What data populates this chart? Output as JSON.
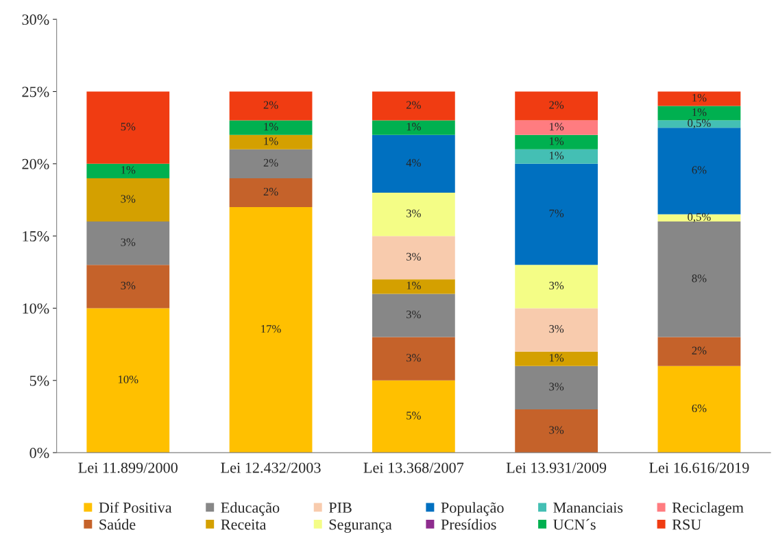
{
  "chart_data": {
    "type": "bar",
    "stacked": true,
    "categories": [
      "Lei 11.899/2000",
      "Lei 12.432/2003",
      "Lei 13.368/2007",
      "Lei 13.931/2009",
      "Lei 16.616/2019"
    ],
    "ylim": [
      0,
      30
    ],
    "yticks": [
      {
        "value": 0,
        "label": "0%"
      },
      {
        "value": 5,
        "label": "5%"
      },
      {
        "value": 10,
        "label": "10%"
      },
      {
        "value": 15,
        "label": "15%"
      },
      {
        "value": 20,
        "label": "20%"
      },
      {
        "value": 25,
        "label": "25%"
      },
      {
        "value": 30,
        "label": "30%"
      }
    ],
    "grid": false,
    "legend": "bottom",
    "series": [
      {
        "name": "Dif Positiva",
        "color": "#ffc000",
        "values": [
          10,
          17,
          5,
          null,
          6
        ],
        "value_labels": [
          "10%",
          "17%",
          "5%",
          null,
          "6%"
        ]
      },
      {
        "name": "Saúde",
        "color": "#c5622a",
        "values": [
          3,
          2,
          3,
          3,
          2
        ],
        "value_labels": [
          "3%",
          "2%",
          "3%",
          "3%",
          "2%"
        ]
      },
      {
        "name": "Educação",
        "color": "#878787",
        "values": [
          3,
          2,
          3,
          3,
          8
        ],
        "value_labels": [
          "3%",
          "2%",
          "3%",
          "3%",
          "8%"
        ]
      },
      {
        "name": "Receita",
        "color": "#d4a000",
        "values": [
          3,
          1,
          1,
          1,
          null
        ],
        "value_labels": [
          "3%",
          "1%",
          "1%",
          "1%",
          null
        ]
      },
      {
        "name": "PIB",
        "color": "#f8cbad",
        "values": [
          null,
          null,
          3,
          3,
          null
        ],
        "value_labels": [
          null,
          null,
          "3%",
          "3%",
          null
        ]
      },
      {
        "name": "Segurança",
        "color": "#f4fd86",
        "values": [
          null,
          null,
          3,
          3,
          0.5
        ],
        "value_labels": [
          null,
          null,
          "3%",
          "3%",
          "0,5%"
        ]
      },
      {
        "name": "População",
        "color": "#0070c0",
        "values": [
          null,
          null,
          4,
          7,
          6
        ],
        "value_labels": [
          null,
          null,
          "4%",
          "7%",
          "6%"
        ]
      },
      {
        "name": "Presídios",
        "color": "#8e2c8e",
        "values": [
          null,
          null,
          null,
          null,
          null
        ],
        "value_labels": [
          null,
          null,
          null,
          null,
          null
        ]
      },
      {
        "name": "Mananciais",
        "color": "#44bfb4",
        "values": [
          null,
          null,
          null,
          1,
          0.5
        ],
        "value_labels": [
          null,
          null,
          null,
          "1%",
          "0,5%"
        ]
      },
      {
        "name": "UCN´s",
        "color": "#00b050",
        "values": [
          1,
          1,
          1,
          1,
          1
        ],
        "value_labels": [
          "1%",
          "1%",
          "1%",
          "1%",
          "1%"
        ]
      },
      {
        "name": "Reciclagem",
        "color": "#ff7c80",
        "values": [
          null,
          null,
          null,
          1,
          null
        ],
        "value_labels": [
          null,
          null,
          null,
          "1%",
          null
        ]
      },
      {
        "name": "RSU",
        "color": "#f03c12",
        "values": [
          5,
          2,
          2,
          2,
          1
        ],
        "value_labels": [
          "5%",
          "2%",
          "2%",
          "2%",
          "1%"
        ]
      }
    ]
  }
}
